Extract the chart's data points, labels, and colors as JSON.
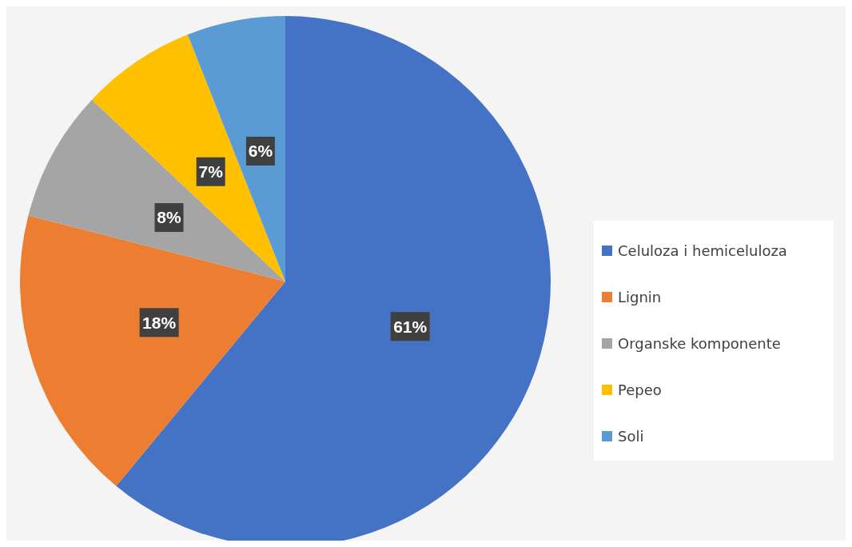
{
  "chart_data": {
    "type": "pie",
    "categories": [
      "Celuloza i hemiceluloza",
      "Lignin",
      "Organske komponente",
      "Pepeo",
      "Soli"
    ],
    "values": [
      61,
      18,
      8,
      7,
      6
    ],
    "colors": [
      "#4472c4",
      "#ed7d31",
      "#a5a5a5",
      "#ffc000",
      "#5b9bd5"
    ],
    "value_labels": [
      "61%",
      "18%",
      "8%",
      "7%",
      "6%"
    ],
    "legend": "right"
  }
}
